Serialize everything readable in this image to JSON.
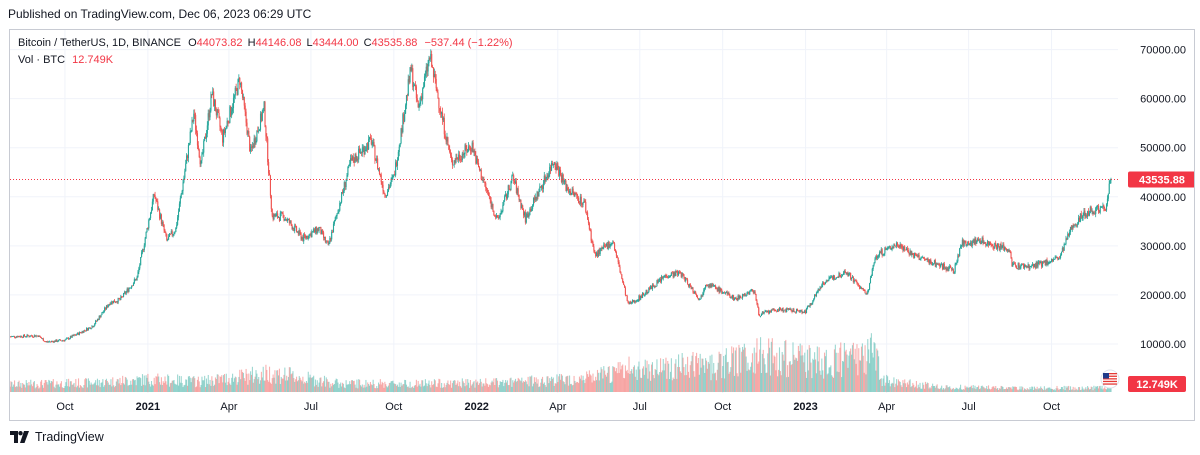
{
  "header": {
    "published": "Published on TradingView.com, Dec 06, 2023 06:29 UTC"
  },
  "legend": {
    "symbol": "Bitcoin / TetherUS, 1D, BINANCE",
    "o_label": "O",
    "o_value": "44073.82",
    "h_label": "H",
    "h_value": "44146.08",
    "l_label": "L",
    "l_value": "43444.00",
    "c_label": "C",
    "c_value": "43535.88",
    "change": "−537.44 (−1.22%)",
    "vol_label": "Vol · BTC",
    "vol_value": "12.749K"
  },
  "footer": {
    "brand": "TradingView"
  },
  "colors": {
    "up": "#26a69a",
    "down": "#ef5350",
    "last_price_tag": "#f23645",
    "grid": "#f0f3fa",
    "text": "#131722"
  },
  "chart_data": {
    "type": "candlestick",
    "title": "Bitcoin / TetherUS, 1D, BINANCE",
    "xlabel": "",
    "ylabel": "",
    "ylim": [
      0,
      74000
    ],
    "y_ticks": [
      "70000.00",
      "60000.00",
      "50000.00",
      "40000.00",
      "30000.00",
      "20000.00",
      "10000.00"
    ],
    "y_tick_values": [
      70000,
      60000,
      50000,
      40000,
      30000,
      20000,
      10000
    ],
    "x_tick_labels": [
      "Oct",
      "2021",
      "Apr",
      "Jul",
      "Oct",
      "2022",
      "Apr",
      "Jul",
      "Oct",
      "2023",
      "Apr",
      "Jul",
      "Oct"
    ],
    "x_tick_dates": [
      "2020-10-01",
      "2021-01-01",
      "2021-04-01",
      "2021-07-01",
      "2021-10-01",
      "2022-01-01",
      "2022-04-01",
      "2022-07-01",
      "2022-10-01",
      "2023-01-01",
      "2023-04-01",
      "2023-07-01",
      "2023-10-01"
    ],
    "x_range": [
      "2020-08-01",
      "2023-12-06"
    ],
    "last_price": 43535.88,
    "last_price_label": "43535.88",
    "volume_label": "12.749K",
    "grid": true,
    "price_series": {
      "name": "BTCUSDT",
      "points": [
        [
          "2020-08-01",
          11500
        ],
        [
          "2020-09-01",
          11700
        ],
        [
          "2020-09-10",
          10400
        ],
        [
          "2020-10-01",
          10800
        ],
        [
          "2020-10-20",
          12500
        ],
        [
          "2020-11-01",
          13700
        ],
        [
          "2020-11-20",
          18500
        ],
        [
          "2020-12-01",
          19000
        ],
        [
          "2020-12-20",
          23500
        ],
        [
          "2021-01-08",
          40500
        ],
        [
          "2021-01-22",
          31000
        ],
        [
          "2021-02-01",
          33500
        ],
        [
          "2021-02-21",
          57000
        ],
        [
          "2021-03-01",
          46500
        ],
        [
          "2021-03-13",
          61000
        ],
        [
          "2021-03-25",
          52000
        ],
        [
          "2021-04-13",
          64000
        ],
        [
          "2021-04-25",
          49000
        ],
        [
          "2021-05-10",
          58000
        ],
        [
          "2021-05-19",
          36000
        ],
        [
          "2021-06-01",
          36000
        ],
        [
          "2021-06-22",
          31500
        ],
        [
          "2021-07-10",
          33500
        ],
        [
          "2021-07-20",
          29800
        ],
        [
          "2021-08-14",
          47000
        ],
        [
          "2021-09-06",
          51500
        ],
        [
          "2021-09-21",
          40500
        ],
        [
          "2021-10-01",
          44000
        ],
        [
          "2021-10-20",
          66000
        ],
        [
          "2021-10-28",
          58000
        ],
        [
          "2021-11-10",
          68500
        ],
        [
          "2021-11-26",
          54000
        ],
        [
          "2021-12-04",
          47000
        ],
        [
          "2021-12-27",
          50500
        ],
        [
          "2022-01-01",
          47000
        ],
        [
          "2022-01-24",
          35000
        ],
        [
          "2022-02-10",
          44000
        ],
        [
          "2022-02-24",
          35500
        ],
        [
          "2022-03-28",
          47500
        ],
        [
          "2022-04-10",
          42000
        ],
        [
          "2022-05-01",
          38500
        ],
        [
          "2022-05-12",
          28000
        ],
        [
          "2022-06-01",
          31000
        ],
        [
          "2022-06-18",
          18000
        ],
        [
          "2022-07-01",
          19500
        ],
        [
          "2022-07-30",
          24000
        ],
        [
          "2022-08-15",
          24500
        ],
        [
          "2022-09-06",
          19000
        ],
        [
          "2022-09-12",
          22500
        ],
        [
          "2022-10-15",
          19200
        ],
        [
          "2022-11-05",
          21000
        ],
        [
          "2022-11-10",
          16000
        ],
        [
          "2022-12-01",
          17000
        ],
        [
          "2023-01-01",
          16600
        ],
        [
          "2023-01-20",
          22500
        ],
        [
          "2023-02-15",
          24800
        ],
        [
          "2023-03-10",
          20000
        ],
        [
          "2023-03-20",
          28000
        ],
        [
          "2023-04-14",
          30500
        ],
        [
          "2023-05-01",
          28000
        ],
        [
          "2023-06-15",
          25000
        ],
        [
          "2023-06-23",
          30500
        ],
        [
          "2023-07-14",
          31000
        ],
        [
          "2023-08-15",
          29200
        ],
        [
          "2023-08-18",
          26000
        ],
        [
          "2023-09-10",
          25800
        ],
        [
          "2023-10-10",
          27500
        ],
        [
          "2023-10-25",
          34500
        ],
        [
          "2023-11-10",
          37000
        ],
        [
          "2023-11-30",
          38000
        ],
        [
          "2023-12-04",
          42000
        ],
        [
          "2023-12-06",
          43535.88
        ]
      ]
    },
    "volume_series": {
      "name": "Vol · BTC",
      "points": [
        [
          "2020-08-01",
          0.18
        ],
        [
          "2020-11-01",
          0.22
        ],
        [
          "2021-01-01",
          0.3
        ],
        [
          "2021-03-01",
          0.25
        ],
        [
          "2021-05-19",
          0.45
        ],
        [
          "2021-08-01",
          0.2
        ],
        [
          "2021-11-01",
          0.2
        ],
        [
          "2022-02-01",
          0.22
        ],
        [
          "2022-05-12",
          0.35
        ],
        [
          "2022-06-18",
          0.55
        ],
        [
          "2022-08-01",
          0.6
        ],
        [
          "2022-10-01",
          0.65
        ],
        [
          "2022-11-10",
          0.9
        ],
        [
          "2023-01-15",
          0.7
        ],
        [
          "2023-03-10",
          0.85
        ],
        [
          "2023-03-22",
          1.0
        ],
        [
          "2023-03-25",
          0.28
        ],
        [
          "2023-06-01",
          0.12
        ],
        [
          "2023-09-01",
          0.09
        ],
        [
          "2023-12-06",
          0.1
        ]
      ]
    }
  }
}
